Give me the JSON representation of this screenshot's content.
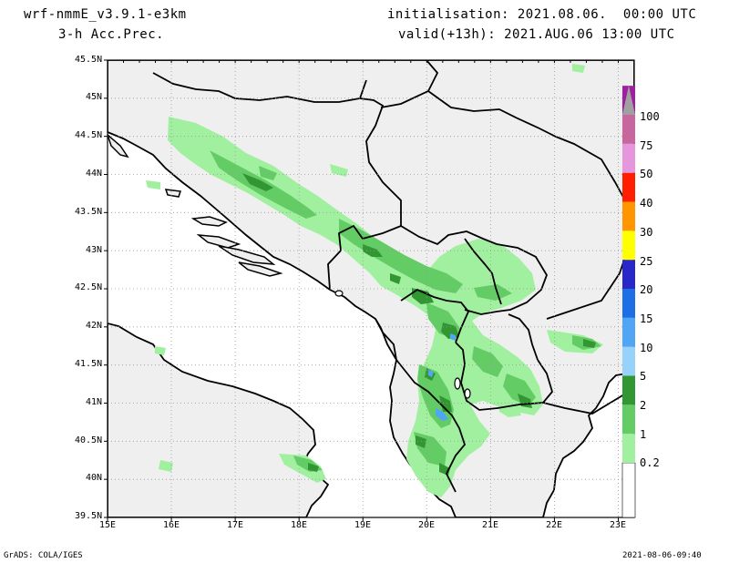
{
  "header": {
    "model": "wrf-nmmE_v3.9.1-e3km",
    "field": "3-h Acc.Prec.",
    "initialisation": "initialisation: 2021.08.06.  00:00 UTC",
    "valid": "valid(+13h): 2021.AUG.06 13:00 UTC"
  },
  "map": {
    "lat_labels": [
      "45.5N",
      "45N",
      "44.5N",
      "44N",
      "43.5N",
      "43N",
      "42.5N",
      "42N",
      "41.5N",
      "41N",
      "40.5N",
      "40N",
      "39.5N"
    ],
    "lon_labels": [
      "15E",
      "16E",
      "17E",
      "18E",
      "19E",
      "20E",
      "21E",
      "22E",
      "23E"
    ],
    "lat_range": [
      39.5,
      45.5
    ],
    "lon_range": [
      15,
      23.25
    ],
    "grid": true,
    "colors": {
      "sea": "#ffffff",
      "land": "#efefef",
      "border": "#000000"
    }
  },
  "legend": {
    "levels": [
      "0.2",
      "1",
      "2",
      "5",
      "10",
      "15",
      "20",
      "25",
      "30",
      "40",
      "50",
      "75",
      "100"
    ],
    "colors": [
      "#a0f0a0",
      "#64cc64",
      "#329632",
      "#96d2fa",
      "#50a5f5",
      "#1e6ee6",
      "#2828c8",
      "#ffff00",
      "#ff9600",
      "#ff1e00",
      "#e696dc",
      "#c8669e",
      "#a01ea0",
      "#a0a0a0"
    ]
  },
  "footer": {
    "credit": "GrADS: COLA/IGES",
    "timestamp": "2021-08-06-09:40"
  }
}
